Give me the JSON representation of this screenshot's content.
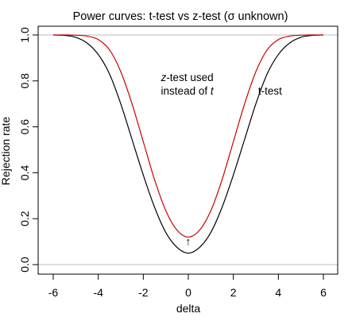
{
  "chart_data": {
    "type": "line",
    "title": "Power curves: t-test vs z-test  (σ unknown)",
    "xlabel": "delta",
    "ylabel": "Rejection  rate",
    "xlim": [
      -6,
      6
    ],
    "ylim": [
      0,
      1
    ],
    "x_ticks": [
      -6,
      -4,
      -2,
      0,
      2,
      4,
      6
    ],
    "y_ticks": [
      "0.0",
      "0.2",
      "0.4",
      "0.6",
      "0.8",
      "1.0"
    ],
    "y_tick_values": [
      0,
      0.2,
      0.4,
      0.6,
      0.8,
      1.0
    ],
    "reference_lines": [
      0,
      1
    ],
    "reference_line_color": "#bebebe",
    "series": [
      {
        "name": "t-test",
        "color": "#000000",
        "x": [
          -6,
          -5.5,
          -5,
          -4.5,
          -4,
          -3.5,
          -3,
          -2.5,
          -2,
          -1.5,
          -1,
          -0.5,
          0,
          0.5,
          1,
          1.5,
          2,
          2.5,
          3,
          3.5,
          4,
          4.5,
          5,
          5.5,
          6
        ],
        "values": [
          1.0,
          0.998,
          0.99,
          0.965,
          0.915,
          0.83,
          0.7,
          0.545,
          0.39,
          0.25,
          0.14,
          0.075,
          0.05,
          0.075,
          0.14,
          0.25,
          0.39,
          0.545,
          0.7,
          0.83,
          0.915,
          0.965,
          0.99,
          0.998,
          1.0
        ]
      },
      {
        "name": "z-test used instead of t",
        "color": "#cc0000",
        "x": [
          -6,
          -5.5,
          -5,
          -4.5,
          -4,
          -3.5,
          -3,
          -2.5,
          -2,
          -1.5,
          -1,
          -0.5,
          0,
          0.5,
          1,
          1.5,
          2,
          2.5,
          3,
          3.5,
          4,
          4.5,
          5,
          5.5,
          6
        ],
        "values": [
          1.0,
          1.0,
          0.999,
          0.995,
          0.98,
          0.935,
          0.84,
          0.7,
          0.535,
          0.37,
          0.235,
          0.15,
          0.12,
          0.15,
          0.235,
          0.37,
          0.535,
          0.7,
          0.84,
          0.935,
          0.98,
          0.995,
          0.999,
          1.0,
          1.0
        ]
      }
    ],
    "annotations": [
      {
        "id": "z",
        "lines": [
          "z-test used",
          "instead of t"
        ],
        "x": -0.05,
        "y": 0.8
      },
      {
        "id": "t",
        "text": "t-test",
        "x": 3.1,
        "y": 0.74
      },
      {
        "id": "arrow",
        "text": "↑",
        "x": 0,
        "y": 0.085,
        "color": "#cc0000"
      }
    ]
  }
}
